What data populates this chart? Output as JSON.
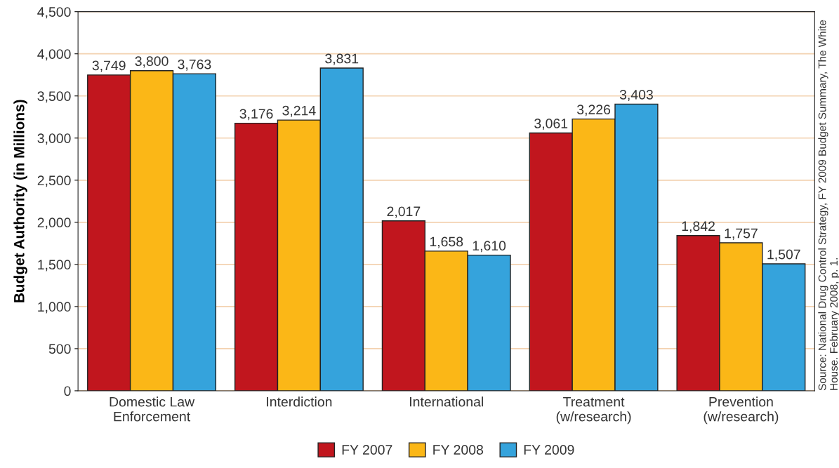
{
  "chart_data": {
    "type": "bar",
    "ylabel": "Budget Authority (in Millions)",
    "categories": [
      "Domestic Law\nEnforcement",
      "Interdiction",
      "International",
      "Treatment\n(w/research)",
      "Prevention\n(w/research)"
    ],
    "series": [
      {
        "name": "FY 2007",
        "color": "#c1161e",
        "values": [
          3749,
          3176,
          2017,
          3061,
          1842
        ]
      },
      {
        "name": "FY 2008",
        "color": "#fbb717",
        "values": [
          3800,
          3214,
          1658,
          3226,
          1757
        ]
      },
      {
        "name": "FY 2009",
        "color": "#35a3dc",
        "values": [
          3763,
          3831,
          1610,
          3403,
          1507
        ]
      }
    ],
    "ylim": [
      0,
      4500
    ],
    "yticks": [
      {
        "value": 0,
        "label": "0"
      },
      {
        "value": 500,
        "label": "500"
      },
      {
        "value": 1000,
        "label": "1,000"
      },
      {
        "value": 1500,
        "label": "1,500"
      },
      {
        "value": 2000,
        "label": "2,000"
      },
      {
        "value": 2500,
        "label": "2,500"
      },
      {
        "value": 3000,
        "label": "3,000"
      },
      {
        "value": 3500,
        "label": "3,500"
      },
      {
        "value": 4000,
        "label": "4,000"
      },
      {
        "value": 4500,
        "label": "4,500"
      }
    ],
    "grid": "y",
    "legend": "bottom",
    "value_labels": [
      [
        "3,749",
        "3,176",
        "2,017",
        "3,061",
        "1,842"
      ],
      [
        "3,800",
        "3,214",
        "1,658",
        "3,226",
        "1,757"
      ],
      [
        "3,763",
        "3,831",
        "1,610",
        "3,403",
        "1,507"
      ]
    ],
    "annotations": [
      "Source: National Drug Control Strategy, FY 2009 Budget Summary, The White\nHouse. February 2008, p. 1."
    ]
  }
}
